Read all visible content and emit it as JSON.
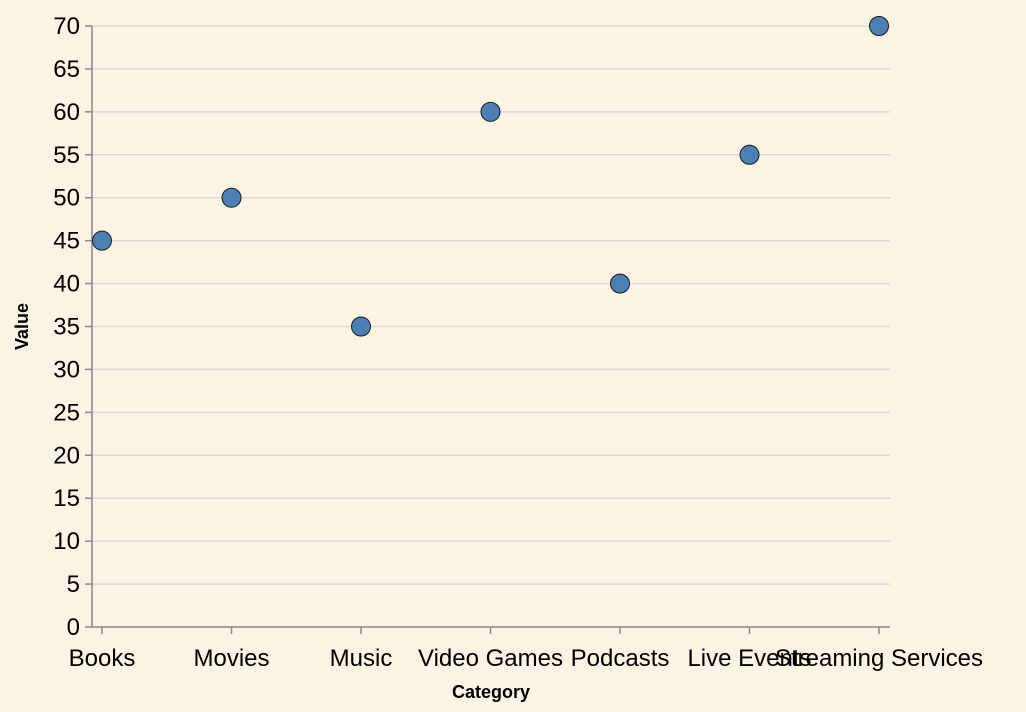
{
  "chart_data": {
    "type": "scatter",
    "xlabel": "Category",
    "ylabel": "Value",
    "categories": [
      "Books",
      "Movies",
      "Music",
      "Video Games",
      "Podcasts",
      "Live Events",
      "Streaming Services"
    ],
    "values": [
      45,
      50,
      35,
      60,
      40,
      55,
      70
    ],
    "ylim": [
      0,
      70
    ],
    "yticks": [
      0,
      5,
      10,
      15,
      20,
      25,
      30,
      35,
      40,
      45,
      50,
      55,
      60,
      65,
      70
    ],
    "grid": "horizontal",
    "colors": {
      "point_fill": "#4c7fb3",
      "point_stroke": "#1a1a1a",
      "background": "#fdf3e5"
    }
  }
}
